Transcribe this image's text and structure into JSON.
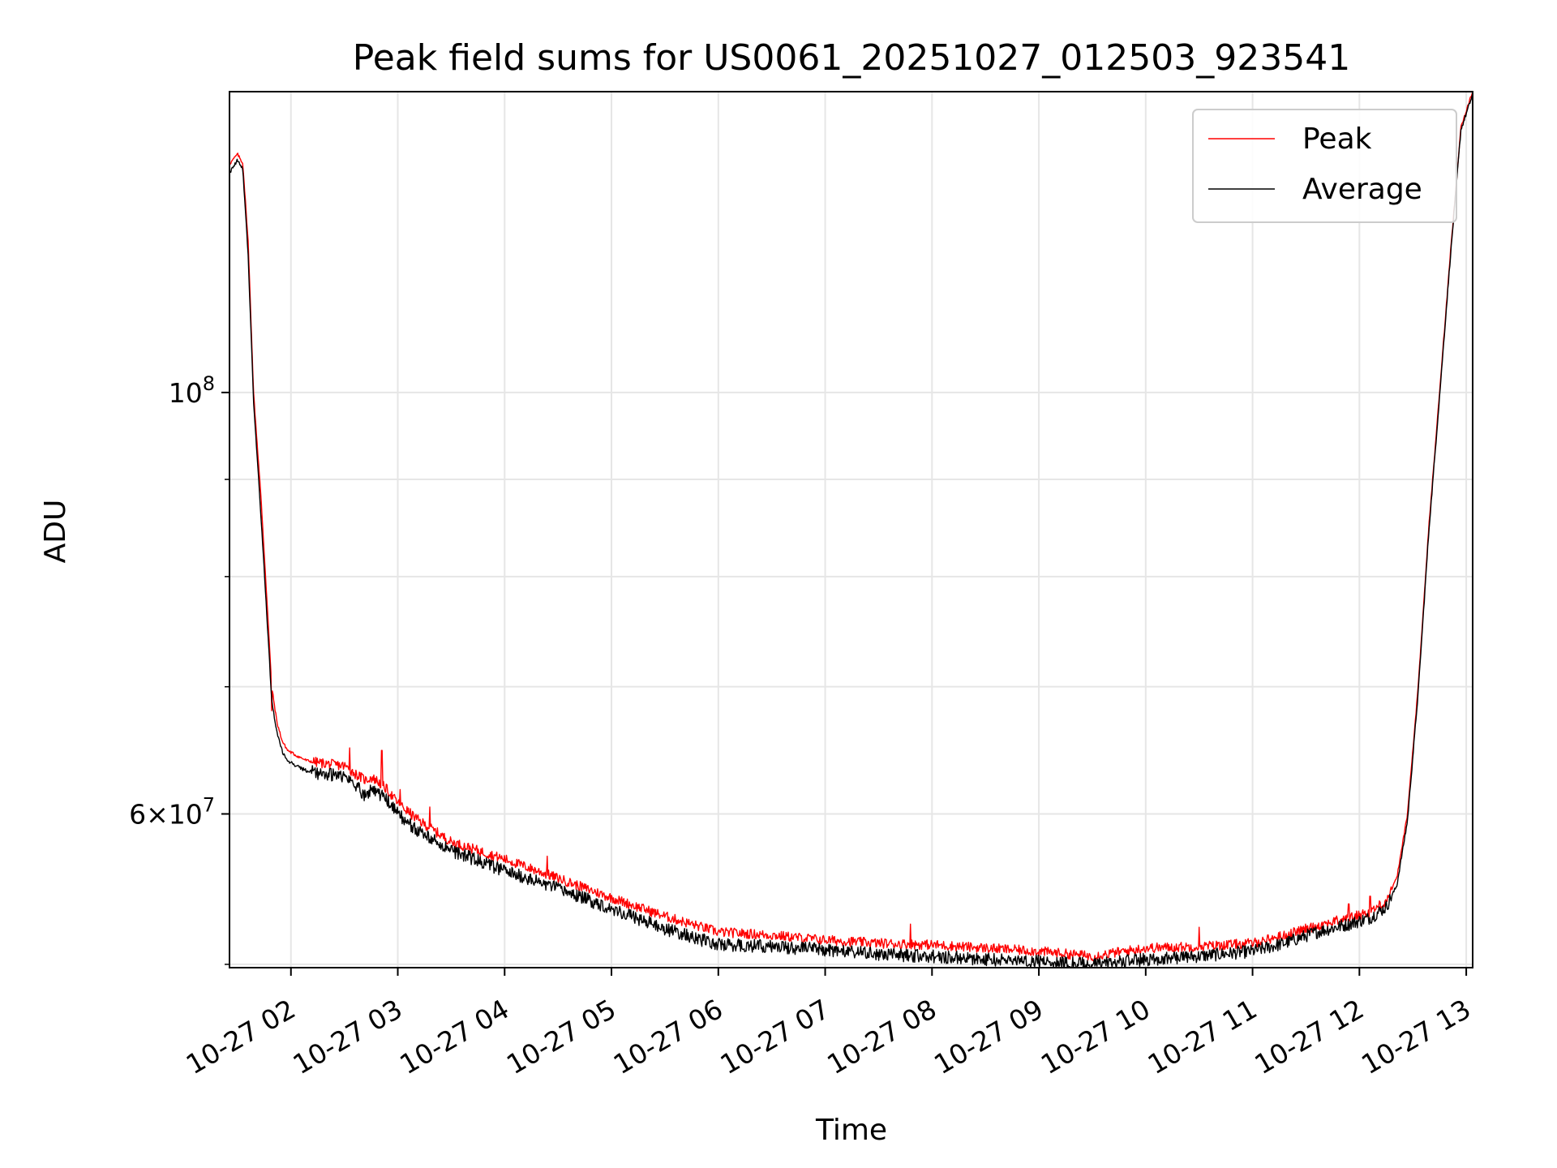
{
  "chart_data": {
    "type": "line",
    "title": "Peak field sums for US0061_20251027_012503_923541",
    "xlabel": "Time",
    "ylabel": "ADU",
    "yscale": "log",
    "grid": true,
    "legend_position": "top-right",
    "x_unit": "hours since 10-27 00:00",
    "xlim": [
      1.425,
      13.06
    ],
    "ylim": [
      49800000,
      144000000
    ],
    "x_ticks": [
      {
        "value": 2,
        "label": "10-27 02"
      },
      {
        "value": 3,
        "label": "10-27 03"
      },
      {
        "value": 4,
        "label": "10-27 04"
      },
      {
        "value": 5,
        "label": "10-27 05"
      },
      {
        "value": 6,
        "label": "10-27 06"
      },
      {
        "value": 7,
        "label": "10-27 07"
      },
      {
        "value": 8,
        "label": "10-27 08"
      },
      {
        "value": 9,
        "label": "10-27 09"
      },
      {
        "value": 10,
        "label": "10-27 10"
      },
      {
        "value": 11,
        "label": "10-27 11"
      },
      {
        "value": 12,
        "label": "10-27 12"
      },
      {
        "value": 13,
        "label": "10-27 13"
      }
    ],
    "y_major_ticks": [
      {
        "value": 100000000,
        "base": "10",
        "exp": "8",
        "pre": ""
      },
      {
        "value": 60000000,
        "base": "10",
        "exp": "7",
        "pre": "6×"
      }
    ],
    "y_minor_ticks": [
      50000000,
      70000000,
      80000000,
      90000000
    ],
    "series": [
      {
        "name": "Peak",
        "color": "#ff0000",
        "x": [
          1.43,
          1.5,
          1.55,
          1.6,
          1.65,
          1.72,
          1.78,
          1.82,
          1.87,
          1.92,
          1.97,
          2.05,
          2.15,
          2.3,
          2.5,
          2.6,
          2.7,
          2.75,
          2.8,
          2.9,
          3.0,
          3.2,
          3.5,
          4.0,
          4.5,
          5.0,
          5.5,
          6.0,
          6.5,
          7.0,
          7.5,
          8.0,
          8.5,
          9.0,
          9.5,
          10.0,
          10.5,
          11.0,
          11.3,
          11.6,
          11.9,
          12.1,
          12.25,
          12.35,
          12.45,
          12.55,
          12.65,
          12.75,
          12.85,
          12.95,
          13.06
        ],
        "y": [
          132000000,
          133500000,
          132000000,
          120000000,
          100000000,
          88000000,
          77000000,
          70000000,
          67000000,
          65500000,
          64800000,
          64400000,
          64000000,
          63800000,
          63600000,
          63000000,
          62500000,
          62700000,
          62500000,
          61800000,
          60800000,
          59500000,
          58000000,
          56800000,
          55500000,
          54200000,
          53000000,
          52000000,
          51800000,
          51500000,
          51300000,
          51200000,
          51000000,
          50800000,
          50500000,
          51000000,
          51100000,
          51300000,
          51800000,
          52400000,
          52900000,
          53300000,
          54000000,
          55500000,
          60000000,
          70000000,
          85000000,
          100000000,
          118000000,
          138000000,
          144000000
        ],
        "noise_amplitude": 0.006,
        "spikes": [
          {
            "x": 1.82,
            "y": 68000000
          },
          {
            "x": 2.55,
            "y": 65000000
          },
          {
            "x": 2.85,
            "y": 64800000
          },
          {
            "x": 3.02,
            "y": 61800000
          },
          {
            "x": 3.3,
            "y": 60500000
          },
          {
            "x": 4.4,
            "y": 57000000
          },
          {
            "x": 7.8,
            "y": 52500000
          },
          {
            "x": 10.5,
            "y": 52300000
          },
          {
            "x": 11.9,
            "y": 53800000
          },
          {
            "x": 12.1,
            "y": 54300000
          }
        ]
      },
      {
        "name": "Average",
        "color": "#000000",
        "x": [
          1.43,
          1.5,
          1.55,
          1.6,
          1.65,
          1.72,
          1.78,
          1.82,
          1.87,
          1.92,
          1.97,
          2.05,
          2.15,
          2.3,
          2.5,
          2.6,
          2.7,
          2.75,
          2.8,
          2.9,
          3.0,
          3.2,
          3.5,
          4.0,
          4.5,
          5.0,
          5.5,
          6.0,
          6.5,
          7.0,
          7.5,
          8.0,
          8.5,
          9.0,
          9.5,
          10.0,
          10.5,
          11.0,
          11.3,
          11.6,
          11.9,
          12.1,
          12.25,
          12.35,
          12.45,
          12.55,
          12.65,
          12.75,
          12.85,
          12.95,
          13.06
        ],
        "y": [
          130500000,
          132500000,
          131000000,
          118000000,
          99000000,
          86000000,
          75500000,
          68800000,
          66200000,
          64700000,
          64000000,
          63600000,
          63200000,
          63000000,
          62800000,
          62200000,
          61300000,
          61800000,
          61700000,
          61000000,
          60000000,
          58700000,
          57400000,
          56000000,
          54800000,
          53500000,
          52200000,
          51200000,
          51100000,
          50900000,
          50600000,
          50500000,
          50300000,
          50200000,
          50000000,
          50300000,
          50500000,
          50800000,
          51300000,
          52000000,
          52500000,
          52900000,
          53600000,
          55000000,
          59500000,
          69500000,
          84500000,
          99500000,
          117500000,
          137500000,
          143500000
        ],
        "noise_amplitude": 0.008,
        "spikes": []
      }
    ]
  }
}
